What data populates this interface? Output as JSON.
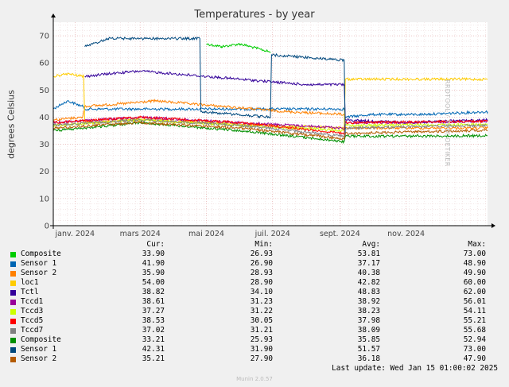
{
  "title": "Temperatures - by year",
  "ylabel": "degrees Celsius",
  "watermark": "RRDTOOL / TOBI OETIKER",
  "munin_version": "Munin 2.0.57",
  "last_update": "Last update: Wed Jan 15 01:00:02 2025",
  "legend_headers": {
    "cur": "Cur:",
    "min": "Min:",
    "avg": "Avg:",
    "max": "Max:"
  },
  "legend": [
    {
      "name": "Composite",
      "color": "#00cc00",
      "cur": "33.90",
      "min": "26.93",
      "avg": "53.81",
      "max": "73.00"
    },
    {
      "name": "Sensor 1",
      "color": "#0066b3",
      "cur": "41.90",
      "min": "26.90",
      "avg": "37.17",
      "max": "48.90"
    },
    {
      "name": "Sensor 2",
      "color": "#ff8000",
      "cur": "35.90",
      "min": "28.93",
      "avg": "40.38",
      "max": "49.90"
    },
    {
      "name": "loc1",
      "color": "#ffcc00",
      "cur": "54.00",
      "min": "28.90",
      "avg": "42.82",
      "max": "60.00"
    },
    {
      "name": "Tctl",
      "color": "#330099",
      "cur": "38.82",
      "min": "34.10",
      "avg": "48.83",
      "max": "62.00"
    },
    {
      "name": "Tccd1",
      "color": "#990099",
      "cur": "38.61",
      "min": "31.23",
      "avg": "38.92",
      "max": "56.01"
    },
    {
      "name": "Tccd3",
      "color": "#ccff00",
      "cur": "37.27",
      "min": "31.22",
      "avg": "38.23",
      "max": "54.11"
    },
    {
      "name": "Tccd5",
      "color": "#ff0000",
      "cur": "38.53",
      "min": "30.05",
      "avg": "37.98",
      "max": "55.21"
    },
    {
      "name": "Tccd7",
      "color": "#808080",
      "cur": "37.02",
      "min": "31.21",
      "avg": "38.09",
      "max": "55.68"
    },
    {
      "name": "Composite",
      "color": "#008f00",
      "cur": "33.21",
      "min": "25.93",
      "avg": "35.85",
      "max": "52.94"
    },
    {
      "name": "Sensor 1",
      "color": "#00487d",
      "cur": "42.31",
      "min": "31.90",
      "avg": "51.57",
      "max": "73.00"
    },
    {
      "name": "Sensor 2",
      "color": "#b35a00",
      "cur": "35.21",
      "min": "27.90",
      "avg": "36.18",
      "max": "47.90"
    }
  ],
  "chart_data": {
    "type": "line",
    "title": "Temperatures - by year",
    "ylabel": "degrees Celsius",
    "ylim": [
      0,
      75
    ],
    "yticks": [
      0,
      10,
      20,
      30,
      40,
      50,
      60,
      70
    ],
    "xlim": [
      "2023-12-12",
      "2025-01-15"
    ],
    "xticks": [
      {
        "date": "2024-01-01",
        "label": "janv. 2024"
      },
      {
        "date": "2024-03-01",
        "label": "mars 2024"
      },
      {
        "date": "2024-05-01",
        "label": "mai 2024"
      },
      {
        "date": "2024-07-01",
        "label": "juil. 2024"
      },
      {
        "date": "2024-09-01",
        "label": "sept. 2024"
      },
      {
        "date": "2024-11-01",
        "label": "nov. 2024"
      }
    ],
    "grid": true,
    "series": [
      {
        "name": "Composite",
        "color": "#00cc00",
        "points": [
          [
            "2024-05-01",
            67
          ],
          [
            "2024-05-15",
            66
          ],
          [
            "2024-06-01",
            67
          ],
          [
            "2024-06-20",
            65
          ],
          [
            "2024-06-29",
            64
          ]
        ]
      },
      {
        "name": "Sensor 1",
        "color": "#0066b3",
        "points": [
          [
            "2023-12-12",
            43
          ],
          [
            "2023-12-25",
            46
          ],
          [
            "2024-01-08",
            44
          ],
          [
            "2024-01-10",
            43
          ],
          [
            "2024-09-05",
            43
          ],
          [
            "2024-09-06",
            40
          ],
          [
            "2024-10-01",
            41
          ],
          [
            "2024-11-15",
            41
          ],
          [
            "2025-01-15",
            42
          ]
        ]
      },
      {
        "name": "Sensor 2",
        "color": "#ff8000",
        "points": [
          [
            "2023-12-12",
            39
          ],
          [
            "2024-01-08",
            40
          ],
          [
            "2024-01-10",
            44
          ],
          [
            "2024-02-15",
            45
          ],
          [
            "2024-03-15",
            46
          ],
          [
            "2024-04-15",
            45
          ],
          [
            "2024-05-15",
            44
          ],
          [
            "2024-06-15",
            43
          ],
          [
            "2024-07-15",
            42
          ],
          [
            "2024-09-05",
            41
          ],
          [
            "2024-09-06",
            36
          ],
          [
            "2024-11-01",
            36
          ],
          [
            "2025-01-15",
            36
          ]
        ]
      },
      {
        "name": "loc1",
        "color": "#ffcc00",
        "points": [
          [
            "2023-12-12",
            55
          ],
          [
            "2023-12-25",
            56
          ],
          [
            "2024-01-09",
            55
          ],
          [
            "2024-01-10",
            38
          ],
          [
            "2024-03-01",
            39
          ],
          [
            "2024-05-01",
            38
          ],
          [
            "2024-07-01",
            37
          ],
          [
            "2024-09-05",
            36
          ],
          [
            "2024-09-06",
            54
          ],
          [
            "2024-11-01",
            54
          ],
          [
            "2025-01-15",
            54
          ]
        ]
      },
      {
        "name": "Tctl",
        "color": "#330099",
        "points": [
          [
            "2024-01-10",
            55
          ],
          [
            "2024-02-01",
            56
          ],
          [
            "2024-03-01",
            57
          ],
          [
            "2024-04-01",
            56
          ],
          [
            "2024-05-01",
            55
          ],
          [
            "2024-06-01",
            54
          ],
          [
            "2024-07-01",
            53
          ],
          [
            "2024-08-01",
            52
          ],
          [
            "2024-09-05",
            52
          ],
          [
            "2024-09-06",
            39
          ],
          [
            "2024-11-01",
            38
          ],
          [
            "2025-01-15",
            39
          ]
        ]
      },
      {
        "name": "Tccd1",
        "color": "#990099",
        "points": [
          [
            "2023-12-12",
            38
          ],
          [
            "2024-03-01",
            40
          ],
          [
            "2024-06-01",
            38
          ],
          [
            "2024-09-05",
            36
          ],
          [
            "2024-09-06",
            38
          ],
          [
            "2024-11-01",
            38
          ],
          [
            "2025-01-15",
            38.6
          ]
        ]
      },
      {
        "name": "Tccd3",
        "color": "#ccff00",
        "points": [
          [
            "2023-12-12",
            37
          ],
          [
            "2024-03-01",
            39
          ],
          [
            "2024-06-01",
            37
          ],
          [
            "2024-09-05",
            35
          ],
          [
            "2024-09-06",
            37
          ],
          [
            "2025-01-15",
            37.3
          ]
        ]
      },
      {
        "name": "Tccd5",
        "color": "#ff0000",
        "points": [
          [
            "2023-12-12",
            38
          ],
          [
            "2024-03-01",
            40
          ],
          [
            "2024-06-01",
            38
          ],
          [
            "2024-09-05",
            34
          ],
          [
            "2024-09-06",
            38
          ],
          [
            "2025-01-15",
            38.5
          ]
        ]
      },
      {
        "name": "Tccd7",
        "color": "#808080",
        "points": [
          [
            "2023-12-12",
            37
          ],
          [
            "2024-03-01",
            39
          ],
          [
            "2024-06-01",
            37
          ],
          [
            "2024-09-05",
            33
          ],
          [
            "2024-09-06",
            36
          ],
          [
            "2025-01-15",
            37
          ]
        ]
      },
      {
        "name": "Composite",
        "color": "#008f00",
        "points": [
          [
            "2023-12-12",
            35
          ],
          [
            "2024-01-10",
            36
          ],
          [
            "2024-03-01",
            38
          ],
          [
            "2024-06-01",
            35
          ],
          [
            "2024-09-05",
            31
          ],
          [
            "2024-09-06",
            33
          ],
          [
            "2024-11-01",
            33
          ],
          [
            "2025-01-15",
            33.2
          ]
        ]
      },
      {
        "name": "Sensor 1",
        "color": "#00487d",
        "points": [
          [
            "2024-01-10",
            66
          ],
          [
            "2024-02-01",
            69
          ],
          [
            "2024-03-15",
            69
          ],
          [
            "2024-04-25",
            69
          ],
          [
            "2024-04-26",
            42
          ],
          [
            "2024-06-29",
            40
          ],
          [
            "2024-06-30",
            63
          ],
          [
            "2024-08-01",
            62
          ],
          [
            "2024-09-05",
            61
          ],
          [
            "2024-09-06",
            33
          ]
        ]
      },
      {
        "name": "Sensor 2",
        "color": "#b35a00",
        "points": [
          [
            "2023-12-12",
            36
          ],
          [
            "2024-03-01",
            38
          ],
          [
            "2024-06-01",
            36
          ],
          [
            "2024-09-05",
            32
          ],
          [
            "2024-09-06",
            34
          ],
          [
            "2025-01-15",
            35.2
          ]
        ]
      }
    ]
  }
}
